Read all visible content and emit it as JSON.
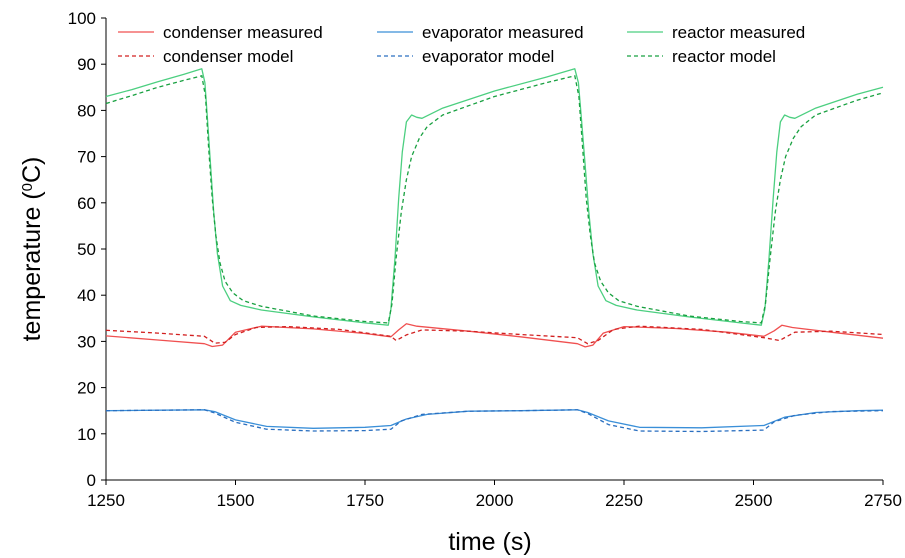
{
  "chart_data": {
    "type": "line",
    "title": "",
    "xlabel": "time (s)",
    "ylabel_main": "temperature (",
    "ylabel_sup": "0",
    "ylabel_end": "C)",
    "xlim": [
      1250,
      2750
    ],
    "ylim": [
      0,
      100
    ],
    "xticks": [
      "1250",
      "1500",
      "1750",
      "2000",
      "2250",
      "2500",
      "2750"
    ],
    "yticks": [
      "0",
      "10",
      "20",
      "30",
      "40",
      "50",
      "60",
      "70",
      "80",
      "90",
      "100"
    ],
    "grid": false,
    "legend_position": "top",
    "series": [
      {
        "name": "condenser measured",
        "color": "#f05050",
        "dash": "solid",
        "x": [
          1250,
          1350,
          1440,
          1455,
          1475,
          1500,
          1550,
          1650,
          1750,
          1800,
          1815,
          1830,
          1850,
          1950,
          2050,
          2160,
          2175,
          2190,
          2210,
          2250,
          2350,
          2450,
          2520,
          2540,
          2555,
          2575,
          2650,
          2750
        ],
        "y": [
          31.2,
          30.3,
          29.5,
          28.9,
          29.2,
          32.0,
          33.3,
          32.7,
          31.7,
          31.0,
          32.5,
          33.8,
          33.3,
          32.2,
          31.0,
          29.5,
          28.8,
          29.2,
          31.8,
          33.2,
          32.8,
          32.0,
          31.1,
          32.3,
          33.5,
          33.0,
          32.0,
          30.7
        ]
      },
      {
        "name": "condenser model",
        "color": "#d22020",
        "dash": "dashed",
        "x": [
          1250,
          1350,
          1440,
          1460,
          1480,
          1500,
          1540,
          1600,
          1700,
          1800,
          1810,
          1830,
          1860,
          1950,
          2050,
          2160,
          2180,
          2200,
          2230,
          2280,
          2400,
          2520,
          2550,
          2580,
          2650,
          2750
        ],
        "y": [
          32.4,
          31.8,
          31.1,
          29.6,
          29.8,
          31.5,
          33.0,
          33.2,
          32.6,
          31.1,
          30.2,
          31.4,
          32.5,
          32.2,
          31.5,
          30.8,
          29.5,
          30.2,
          32.6,
          33.3,
          32.6,
          30.8,
          30.2,
          32.0,
          32.2,
          31.5
        ]
      },
      {
        "name": "evaporator measured",
        "color": "#3a8fd8",
        "dash": "solid",
        "x": [
          1250,
          1350,
          1440,
          1460,
          1500,
          1560,
          1650,
          1750,
          1800,
          1830,
          1870,
          1950,
          2050,
          2160,
          2180,
          2220,
          2280,
          2400,
          2520,
          2560,
          2620,
          2700,
          2750
        ],
        "y": [
          15.0,
          15.1,
          15.2,
          14.8,
          13.0,
          11.6,
          11.2,
          11.4,
          11.8,
          13.2,
          14.2,
          14.9,
          15.0,
          15.2,
          14.6,
          12.8,
          11.4,
          11.3,
          11.8,
          13.6,
          14.6,
          15.0,
          15.1
        ]
      },
      {
        "name": "evaporator model",
        "color": "#2a6fc0",
        "dash": "dashed",
        "x": [
          1250,
          1350,
          1440,
          1460,
          1500,
          1560,
          1650,
          1750,
          1800,
          1820,
          1860,
          1950,
          2050,
          2160,
          2180,
          2220,
          2280,
          2400,
          2520,
          2540,
          2580,
          2650,
          2750
        ],
        "y": [
          15.0,
          15.1,
          15.2,
          14.5,
          12.5,
          11.0,
          10.6,
          10.7,
          11.0,
          12.8,
          14.2,
          14.9,
          15.0,
          15.2,
          14.4,
          12.0,
          10.6,
          10.5,
          10.8,
          12.6,
          14.0,
          14.8,
          15.0
        ]
      },
      {
        "name": "reactor measured",
        "color": "#4ccf80",
        "dash": "solid",
        "x": [
          1250,
          1300,
          1350,
          1400,
          1435,
          1441,
          1446,
          1452,
          1458,
          1465,
          1475,
          1490,
          1510,
          1550,
          1650,
          1750,
          1795,
          1800,
          1808,
          1815,
          1822,
          1830,
          1840,
          1850,
          1860,
          1900,
          2000,
          2100,
          2155,
          2162,
          2168,
          2175,
          2182,
          2190,
          2200,
          2215,
          2235,
          2275,
          2375,
          2475,
          2515,
          2522,
          2530,
          2538,
          2545,
          2552,
          2560,
          2570,
          2580,
          2620,
          2700,
          2750
        ],
        "y": [
          83.0,
          84.5,
          86.2,
          87.8,
          89.0,
          86.0,
          78.0,
          68.0,
          58.0,
          49.0,
          42.0,
          38.8,
          37.8,
          36.8,
          35.3,
          34.0,
          33.5,
          37.0,
          48.0,
          61.0,
          71.0,
          77.5,
          79.0,
          78.5,
          78.3,
          80.5,
          84.2,
          87.2,
          89.0,
          86.0,
          78.0,
          68.0,
          58.0,
          49.0,
          42.0,
          38.8,
          37.8,
          36.8,
          35.3,
          34.0,
          33.5,
          37.0,
          48.0,
          61.0,
          71.0,
          77.5,
          79.0,
          78.5,
          78.3,
          80.5,
          83.5,
          85.0
        ]
      },
      {
        "name": "reactor model",
        "color": "#18a040",
        "dash": "dashed",
        "x": [
          1250,
          1300,
          1350,
          1400,
          1435,
          1442,
          1448,
          1455,
          1462,
          1470,
          1480,
          1495,
          1515,
          1550,
          1650,
          1750,
          1795,
          1802,
          1810,
          1820,
          1830,
          1840,
          1855,
          1870,
          1900,
          2000,
          2100,
          2155,
          2163,
          2170,
          2177,
          2185,
          2193,
          2205,
          2220,
          2240,
          2275,
          2375,
          2475,
          2515,
          2523,
          2532,
          2542,
          2552,
          2562,
          2577,
          2592,
          2620,
          2700,
          2750
        ],
        "y": [
          81.5,
          83.2,
          85.0,
          86.5,
          87.5,
          83.0,
          72.0,
          61.0,
          53.0,
          47.0,
          43.0,
          40.5,
          38.8,
          37.6,
          35.5,
          34.3,
          34.0,
          38.0,
          48.0,
          58.0,
          65.0,
          70.0,
          74.0,
          76.5,
          79.0,
          83.0,
          86.0,
          87.5,
          83.0,
          72.0,
          61.0,
          53.0,
          47.0,
          43.0,
          40.5,
          38.8,
          37.6,
          35.5,
          34.3,
          34.0,
          38.0,
          48.0,
          58.0,
          65.0,
          70.0,
          74.0,
          76.5,
          79.0,
          82.2,
          83.8
        ]
      }
    ]
  }
}
